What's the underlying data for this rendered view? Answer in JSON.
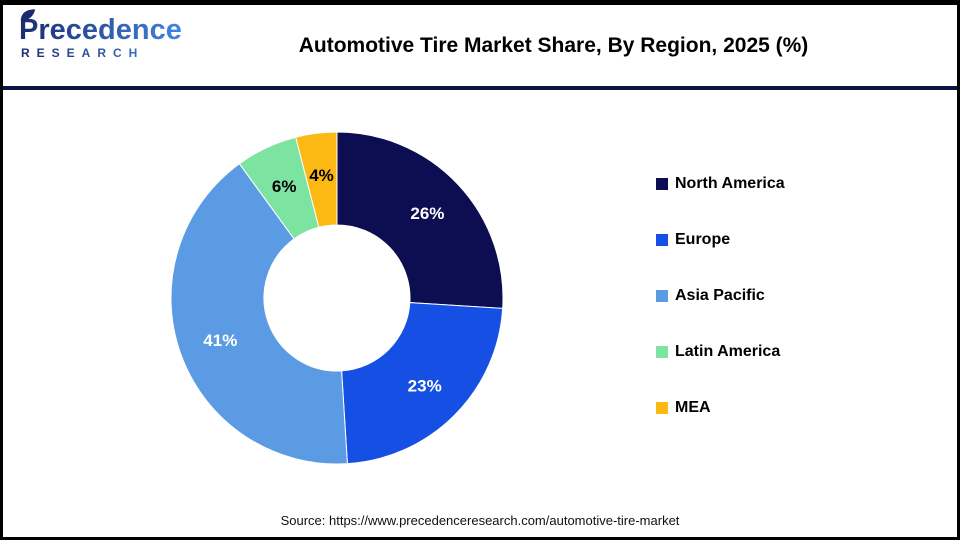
{
  "header": {
    "logo": {
      "brand": "Precedence",
      "sub": "RESEARCH"
    },
    "title": "Automotive Tire Market Share, By Region, 2025 (%)"
  },
  "chart_data": {
    "type": "pie",
    "donut": true,
    "title": "Automotive Tire Market Share, By Region, 2025 (%)",
    "categories": [
      "North America",
      "Europe",
      "Asia Pacific",
      "Latin America",
      "MEA"
    ],
    "values": [
      26,
      23,
      41,
      6,
      4
    ],
    "labels": [
      "26%",
      "23%",
      "41%",
      "6%",
      "4%"
    ],
    "colors": [
      "#0d0d52",
      "#164fe3",
      "#5b9be4",
      "#7de3a1",
      "#fcb813"
    ],
    "label_colors": [
      "#ffffff",
      "#ffffff",
      "#ffffff",
      "#000000",
      "#000000"
    ],
    "start_angle_deg": 0,
    "direction": "clockwise",
    "legend_position": "right"
  },
  "footer": {
    "source": "Source: https://www.precedenceresearch.com/automotive-tire-market"
  },
  "colors": {
    "divider": "#0e1240",
    "border": "#000000",
    "logo_navy": "#1b2b6e",
    "logo_blue": "#4285e0",
    "title_text": "#000000",
    "legend_text": "#000000"
  }
}
